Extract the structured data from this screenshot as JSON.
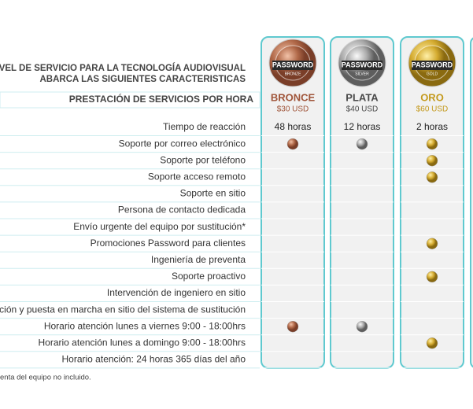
{
  "header": {
    "lines": [
      "STRO NIVEL DE SERVICIO PARA LA TECNOLOGÍA AUDIOVISUAL",
      "ABARCA LAS SIGUIENTES CARACTERISTICAS"
    ],
    "section": "PRESTACIÓN DE SERVICIOS POR HORA"
  },
  "plans": [
    {
      "name": "BRONCE",
      "price": "$30 USD",
      "badge": "PASSWORD",
      "tier": "BRONZE",
      "color": "#a0553a"
    },
    {
      "name": "PLATA",
      "price": "$40 USD",
      "badge": "PASSWORD",
      "tier": "SILVER",
      "color": "#4a4a4a"
    },
    {
      "name": "ORO",
      "price": "$60 USD",
      "badge": "PASSWORD",
      "tier": "GOLD",
      "color": "#c49a1e"
    }
  ],
  "rows": [
    {
      "feature": "Tiempo de reacción",
      "cells": [
        "48 horas",
        "12 horas",
        "2 horas"
      ]
    },
    {
      "feature": "Soporte por correo electrónico",
      "included": [
        true,
        true,
        true
      ]
    },
    {
      "feature": "Soporte por teléfono",
      "included": [
        false,
        false,
        true
      ]
    },
    {
      "feature": "Soporte acceso remoto",
      "included": [
        false,
        false,
        true
      ]
    },
    {
      "feature": "Soporte en sitio",
      "included": [
        false,
        false,
        false
      ]
    },
    {
      "feature": "Persona de contacto dedicada",
      "included": [
        false,
        false,
        false
      ]
    },
    {
      "feature": "Envío urgente del equipo por sustitución*",
      "included": [
        false,
        false,
        false
      ]
    },
    {
      "feature": "Promociones Password para clientes",
      "included": [
        false,
        false,
        true
      ]
    },
    {
      "feature": "Ingeniería de preventa",
      "included": [
        false,
        false,
        false
      ]
    },
    {
      "feature": "Soporte proactivo",
      "included": [
        false,
        false,
        true
      ]
    },
    {
      "feature": "Intervención de ingeniero en sitio",
      "included": [
        false,
        false,
        false
      ]
    },
    {
      "feature": "guración y puesta en marcha en sitio del sistema de sustitución",
      "included": [
        false,
        false,
        false
      ]
    },
    {
      "feature": "Horario atención lunes a viernes 9:00 - 18:00hrs",
      "included": [
        true,
        true,
        false
      ]
    },
    {
      "feature": "Horario atención lunes a domingo 9:00 - 18:00hrs",
      "included": [
        false,
        false,
        true
      ]
    },
    {
      "feature": "Horario atención: 24 horas 365 días del año",
      "included": [
        false,
        false,
        false
      ]
    }
  ],
  "footnote": "enta del equipo no incluido."
}
